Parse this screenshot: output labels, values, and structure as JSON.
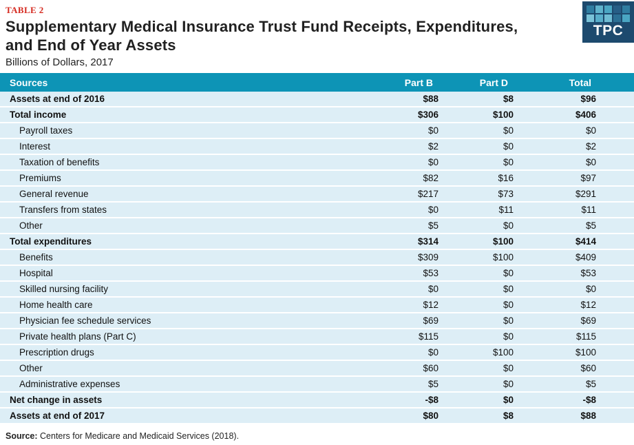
{
  "header": {
    "table_label": "TABLE 2",
    "title_line1": "Supplementary Medical Insurance Trust Fund Receipts, Expenditures,",
    "title_line2": "and End of Year Assets",
    "subtitle": "Billions of Dollars, 2017"
  },
  "logo": {
    "text": "TPC",
    "background": "#1d4a6e",
    "squares": [
      "#2f7da1",
      "#5fb3cc",
      "#4aa6c3",
      "#275e86",
      "#2f7da1",
      "#7ac3d8",
      "#58aeca",
      "#6fbcd3",
      "#2b6f94",
      "#4aa6c3"
    ]
  },
  "colors": {
    "header_bg": "#0d94b6",
    "row_bg": "#ddeef6",
    "accent_red": "#d5291f"
  },
  "table": {
    "columns": [
      "Sources",
      "Part B",
      "Part D",
      "Total"
    ],
    "rows": [
      {
        "label": "Assets at end of 2016",
        "part_b": "$88",
        "part_d": "$8",
        "total": "$96",
        "bold": true
      },
      {
        "label": "Total income",
        "part_b": "$306",
        "part_d": "$100",
        "total": "$406",
        "bold": true
      },
      {
        "label": "Payroll taxes",
        "part_b": "$0",
        "part_d": "$0",
        "total": "$0",
        "bold": false
      },
      {
        "label": "Interest",
        "part_b": "$2",
        "part_d": "$0",
        "total": "$2",
        "bold": false
      },
      {
        "label": "Taxation of benefits",
        "part_b": "$0",
        "part_d": "$0",
        "total": "$0",
        "bold": false
      },
      {
        "label": "Premiums",
        "part_b": "$82",
        "part_d": "$16",
        "total": "$97",
        "bold": false
      },
      {
        "label": "General revenue",
        "part_b": "$217",
        "part_d": "$73",
        "total": "$291",
        "bold": false
      },
      {
        "label": "Transfers from states",
        "part_b": "$0",
        "part_d": "$11",
        "total": "$11",
        "bold": false
      },
      {
        "label": "Other",
        "part_b": "$5",
        "part_d": "$0",
        "total": "$5",
        "bold": false
      },
      {
        "label": "Total expenditures",
        "part_b": "$314",
        "part_d": "$100",
        "total": "$414",
        "bold": true
      },
      {
        "label": "Benefits",
        "part_b": "$309",
        "part_d": "$100",
        "total": "$409",
        "bold": false
      },
      {
        "label": "Hospital",
        "part_b": "$53",
        "part_d": "$0",
        "total": "$53",
        "bold": false
      },
      {
        "label": "Skilled nursing facility",
        "part_b": "$0",
        "part_d": "$0",
        "total": "$0",
        "bold": false
      },
      {
        "label": "Home health care",
        "part_b": "$12",
        "part_d": "$0",
        "total": "$12",
        "bold": false
      },
      {
        "label": "Physician fee schedule services",
        "part_b": "$69",
        "part_d": "$0",
        "total": "$69",
        "bold": false
      },
      {
        "label": "Private health plans (Part C)",
        "part_b": "$115",
        "part_d": "$0",
        "total": "$115",
        "bold": false
      },
      {
        "label": "Prescription drugs",
        "part_b": "$0",
        "part_d": "$100",
        "total": "$100",
        "bold": false
      },
      {
        "label": "Other",
        "part_b": "$60",
        "part_d": "$0",
        "total": "$60",
        "bold": false
      },
      {
        "label": "Administrative expenses",
        "part_b": "$5",
        "part_d": "$0",
        "total": "$5",
        "bold": false
      },
      {
        "label": "Net change in assets",
        "part_b": "-$8",
        "part_d": "$0",
        "total": "-$8",
        "bold": true
      },
      {
        "label": "Assets at end of 2017",
        "part_b": "$80",
        "part_d": "$8",
        "total": "$88",
        "bold": true
      }
    ]
  },
  "footer": {
    "source_label": "Source:",
    "source_text": " Centers for Medicare and Medicaid Services (2018)."
  },
  "chart_data": {
    "type": "table",
    "title": "Supplementary Medical Insurance Trust Fund Receipts, Expenditures, and End of Year Assets (Billions of Dollars, 2017)",
    "columns": [
      "Sources",
      "Part B",
      "Part D",
      "Total"
    ],
    "rows": [
      [
        "Assets at end of 2016",
        88,
        8,
        96
      ],
      [
        "Total income",
        306,
        100,
        406
      ],
      [
        "Payroll taxes",
        0,
        0,
        0
      ],
      [
        "Interest",
        2,
        0,
        2
      ],
      [
        "Taxation of benefits",
        0,
        0,
        0
      ],
      [
        "Premiums",
        82,
        16,
        97
      ],
      [
        "General revenue",
        217,
        73,
        291
      ],
      [
        "Transfers from states",
        0,
        11,
        11
      ],
      [
        "Other",
        5,
        0,
        5
      ],
      [
        "Total expenditures",
        314,
        100,
        414
      ],
      [
        "Benefits",
        309,
        100,
        409
      ],
      [
        "Hospital",
        53,
        0,
        53
      ],
      [
        "Skilled nursing facility",
        0,
        0,
        0
      ],
      [
        "Home health care",
        12,
        0,
        12
      ],
      [
        "Physician fee schedule services",
        69,
        0,
        69
      ],
      [
        "Private health plans (Part C)",
        115,
        0,
        115
      ],
      [
        "Prescription drugs",
        0,
        100,
        100
      ],
      [
        "Other",
        60,
        0,
        60
      ],
      [
        "Administrative expenses",
        5,
        0,
        5
      ],
      [
        "Net change in assets",
        -8,
        0,
        -8
      ],
      [
        "Assets at end of 2017",
        80,
        8,
        88
      ]
    ]
  }
}
